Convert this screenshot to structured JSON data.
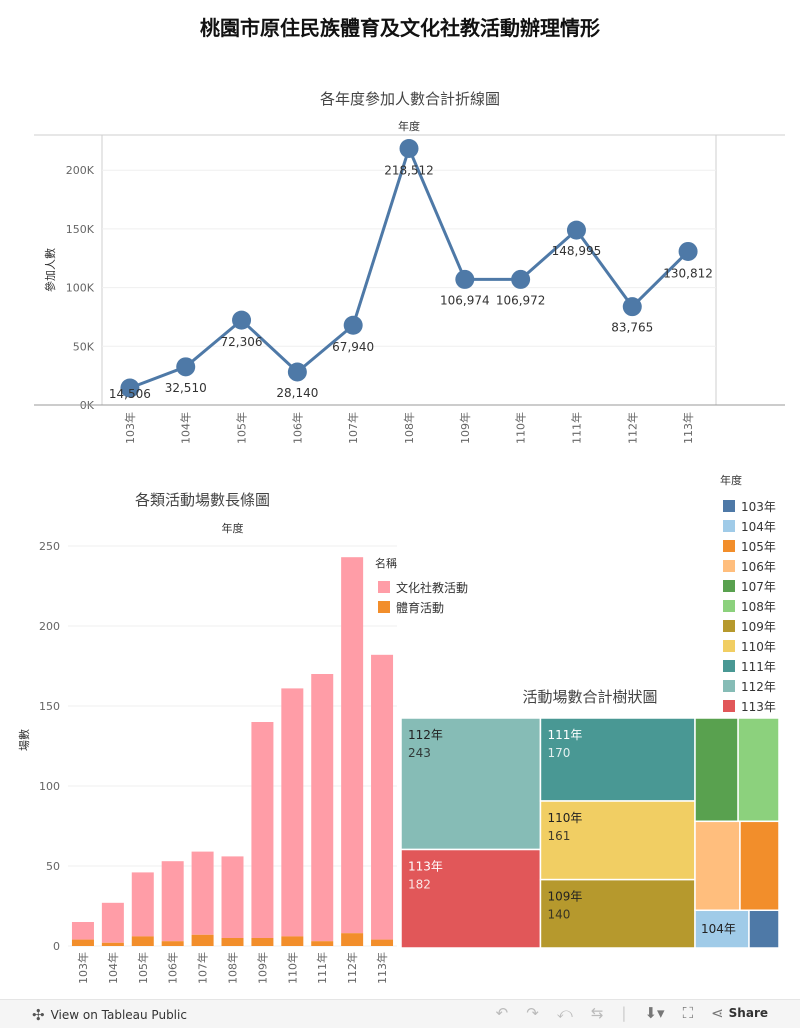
{
  "page": {
    "title": "桃園市原住民族體育及文化社教活動辦理情形"
  },
  "colors": {
    "line": "#4e79a7",
    "culture": "#ff9da7",
    "sports": "#f28e2b"
  },
  "legend_year": {
    "title": "年度",
    "items": [
      {
        "label": "103年",
        "color": "#4e79a7"
      },
      {
        "label": "104年",
        "color": "#a0cbe8"
      },
      {
        "label": "105年",
        "color": "#f28e2b"
      },
      {
        "label": "106年",
        "color": "#ffbe7d"
      },
      {
        "label": "107年",
        "color": "#59a14f"
      },
      {
        "label": "108年",
        "color": "#8cd17d"
      },
      {
        "label": "109年",
        "color": "#b6992d"
      },
      {
        "label": "110年",
        "color": "#f1ce63"
      },
      {
        "label": "111年",
        "color": "#499894"
      },
      {
        "label": "112年",
        "color": "#86bcb6"
      },
      {
        "label": "113年",
        "color": "#e15759"
      }
    ]
  },
  "legend_name": {
    "title": "名稱",
    "items": [
      {
        "label": "文化社教活動",
        "color": "#ff9da7"
      },
      {
        "label": "體育活動",
        "color": "#f28e2b"
      }
    ]
  },
  "footer": {
    "view_label": "View on Tableau Public",
    "share_label": "Share"
  },
  "chart_data": [
    {
      "type": "line",
      "title": "各年度參加人數合計折線圖",
      "header": "年度",
      "ylabel": "參加人數",
      "ylim": [
        0,
        230000
      ],
      "yticks": [
        0,
        50000,
        100000,
        150000,
        200000
      ],
      "ytick_labels": [
        "0K",
        "50K",
        "100K",
        "150K",
        "200K"
      ],
      "categories": [
        "103年",
        "104年",
        "105年",
        "106年",
        "107年",
        "108年",
        "109年",
        "110年",
        "111年",
        "112年",
        "113年"
      ],
      "values": [
        14506,
        32510,
        72306,
        28140,
        67940,
        218512,
        106974,
        106972,
        148995,
        83765,
        130812
      ],
      "data_labels": [
        "14,506",
        "32,510",
        "72,306",
        "28,140",
        "67,940",
        "218,512",
        "106,974",
        "106,972",
        "148,995",
        "83,765",
        "130,812"
      ]
    },
    {
      "type": "bar",
      "stacked": true,
      "title": "各類活動場數長條圖",
      "header": "年度",
      "ylabel": "場數",
      "ylim": [
        0,
        250
      ],
      "yticks": [
        0,
        50,
        100,
        150,
        200,
        250
      ],
      "categories": [
        "103年",
        "104年",
        "105年",
        "106年",
        "107年",
        "108年",
        "109年",
        "110年",
        "111年",
        "112年",
        "113年"
      ],
      "series": [
        {
          "name": "體育活動",
          "values": [
            4,
            2,
            6,
            3,
            7,
            5,
            5,
            6,
            3,
            8,
            4
          ]
        },
        {
          "name": "文化社教活動",
          "values": [
            11,
            25,
            40,
            50,
            52,
            51,
            135,
            155,
            167,
            235,
            178
          ]
        }
      ]
    },
    {
      "type": "treemap",
      "title": "活動場數合計樹狀圖",
      "items": [
        {
          "label": "112年",
          "value": 243,
          "value_label": "243"
        },
        {
          "label": "113年",
          "value": 182,
          "value_label": "182"
        },
        {
          "label": "111年",
          "value": 170,
          "value_label": "170"
        },
        {
          "label": "110年",
          "value": 161,
          "value_label": "161"
        },
        {
          "label": "109年",
          "value": 140,
          "value_label": "140"
        },
        {
          "label": "107年",
          "value": 59
        },
        {
          "label": "108年",
          "value": 56
        },
        {
          "label": "106年",
          "value": 53
        },
        {
          "label": "105年",
          "value": 46
        },
        {
          "label": "104年",
          "value": 27
        },
        {
          "label": "103年",
          "value": 15
        }
      ]
    }
  ]
}
